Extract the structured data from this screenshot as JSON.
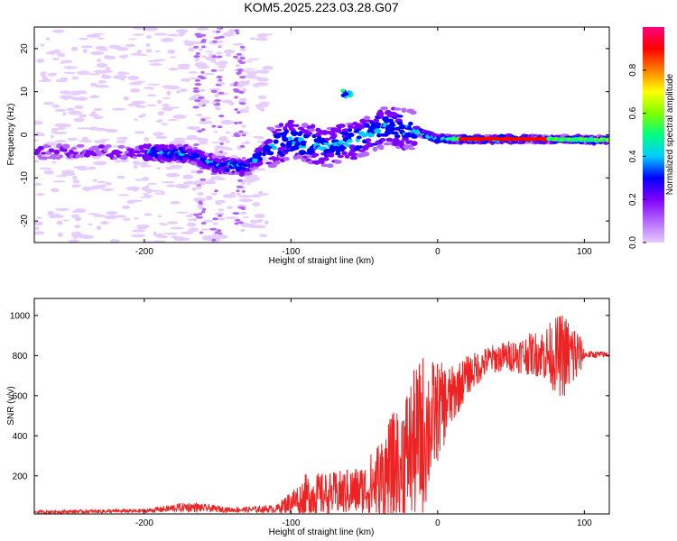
{
  "chart_data": [
    {
      "type": "heatmap",
      "title": "KOM5.2025.223.03.28.G07",
      "xlabel": "Height of straight line (km)",
      "ylabel": "Frequency (Hz)",
      "xlim": [
        -275,
        117
      ],
      "ylim": [
        -25,
        25
      ],
      "xticks": [
        -200,
        -100,
        0,
        100
      ],
      "xtick_labels": [
        "-200",
        "-100",
        "0",
        "100"
      ],
      "yticks": [
        -20,
        -10,
        0,
        10,
        20
      ],
      "ytick_labels": [
        "-20",
        "-10",
        "0",
        "10",
        "20"
      ],
      "colorbar": {
        "label": "Normalized spectral amplitude",
        "range": [
          0,
          1
        ],
        "ticks": [
          0.0,
          0.2,
          0.4,
          0.6,
          0.8
        ],
        "tick_labels": [
          "0.0",
          "0.2",
          "0.4",
          "0.6",
          "0.8"
        ],
        "colors": [
          "#e6ccff",
          "#b366ff",
          "#8000ff",
          "#0000ff",
          "#00ccff",
          "#00ff80",
          "#80ff00",
          "#ffff00",
          "#ff8000",
          "#ff0000",
          "#ff0080"
        ]
      },
      "ridge_centerline": [
        {
          "x": -275,
          "y": -4
        },
        {
          "x": -200,
          "y": -4
        },
        {
          "x": -170,
          "y": -4.5
        },
        {
          "x": -150,
          "y": -7
        },
        {
          "x": -130,
          "y": -7.5
        },
        {
          "x": -115,
          "y": -3
        },
        {
          "x": -100,
          "y": -1
        },
        {
          "x": -75,
          "y": -3
        },
        {
          "x": -55,
          "y": -1
        },
        {
          "x": -35,
          "y": 2
        },
        {
          "x": -15,
          "y": 1
        },
        {
          "x": 0,
          "y": -1
        },
        {
          "x": 30,
          "y": -1
        },
        {
          "x": 60,
          "y": -1
        },
        {
          "x": 117,
          "y": -1.2
        }
      ]
    },
    {
      "type": "line",
      "xlabel": "Height of straight line (km)",
      "ylabel": "SNR (v/v)",
      "xlim": [
        -275,
        117
      ],
      "ylim": [
        10,
        1085
      ],
      "xticks": [
        -200,
        -100,
        0,
        100
      ],
      "xtick_labels": [
        "-200",
        "-100",
        "0",
        "100"
      ],
      "yticks": [
        200,
        400,
        600,
        800,
        1000
      ],
      "ytick_labels": [
        "200",
        "400",
        "600",
        "800",
        "1000"
      ],
      "series": [
        {
          "name": "SNR",
          "color": "#ee2222",
          "envelope": [
            {
              "x": -275,
              "mean": 20,
              "amp": 8
            },
            {
              "x": -200,
              "mean": 25,
              "amp": 10
            },
            {
              "x": -170,
              "mean": 45,
              "amp": 25
            },
            {
              "x": -140,
              "mean": 30,
              "amp": 12
            },
            {
              "x": -110,
              "mean": 35,
              "amp": 20
            },
            {
              "x": -100,
              "mean": 70,
              "amp": 60
            },
            {
              "x": -90,
              "mean": 100,
              "amp": 110
            },
            {
              "x": -70,
              "mean": 110,
              "amp": 110
            },
            {
              "x": -50,
              "mean": 130,
              "amp": 130
            },
            {
              "x": -35,
              "mean": 200,
              "amp": 250
            },
            {
              "x": -20,
              "mean": 320,
              "amp": 350
            },
            {
              "x": -10,
              "mean": 400,
              "amp": 420
            },
            {
              "x": 0,
              "mean": 520,
              "amp": 250
            },
            {
              "x": 10,
              "mean": 600,
              "amp": 150
            },
            {
              "x": 20,
              "mean": 700,
              "amp": 100
            },
            {
              "x": 35,
              "mean": 780,
              "amp": 70
            },
            {
              "x": 50,
              "mean": 800,
              "amp": 80
            },
            {
              "x": 70,
              "mean": 810,
              "amp": 120
            },
            {
              "x": 85,
              "mean": 800,
              "amp": 220
            },
            {
              "x": 95,
              "mean": 800,
              "amp": 160
            },
            {
              "x": 100,
              "mean": 805,
              "amp": 20
            },
            {
              "x": 117,
              "mean": 805,
              "amp": 15
            }
          ]
        }
      ]
    }
  ]
}
